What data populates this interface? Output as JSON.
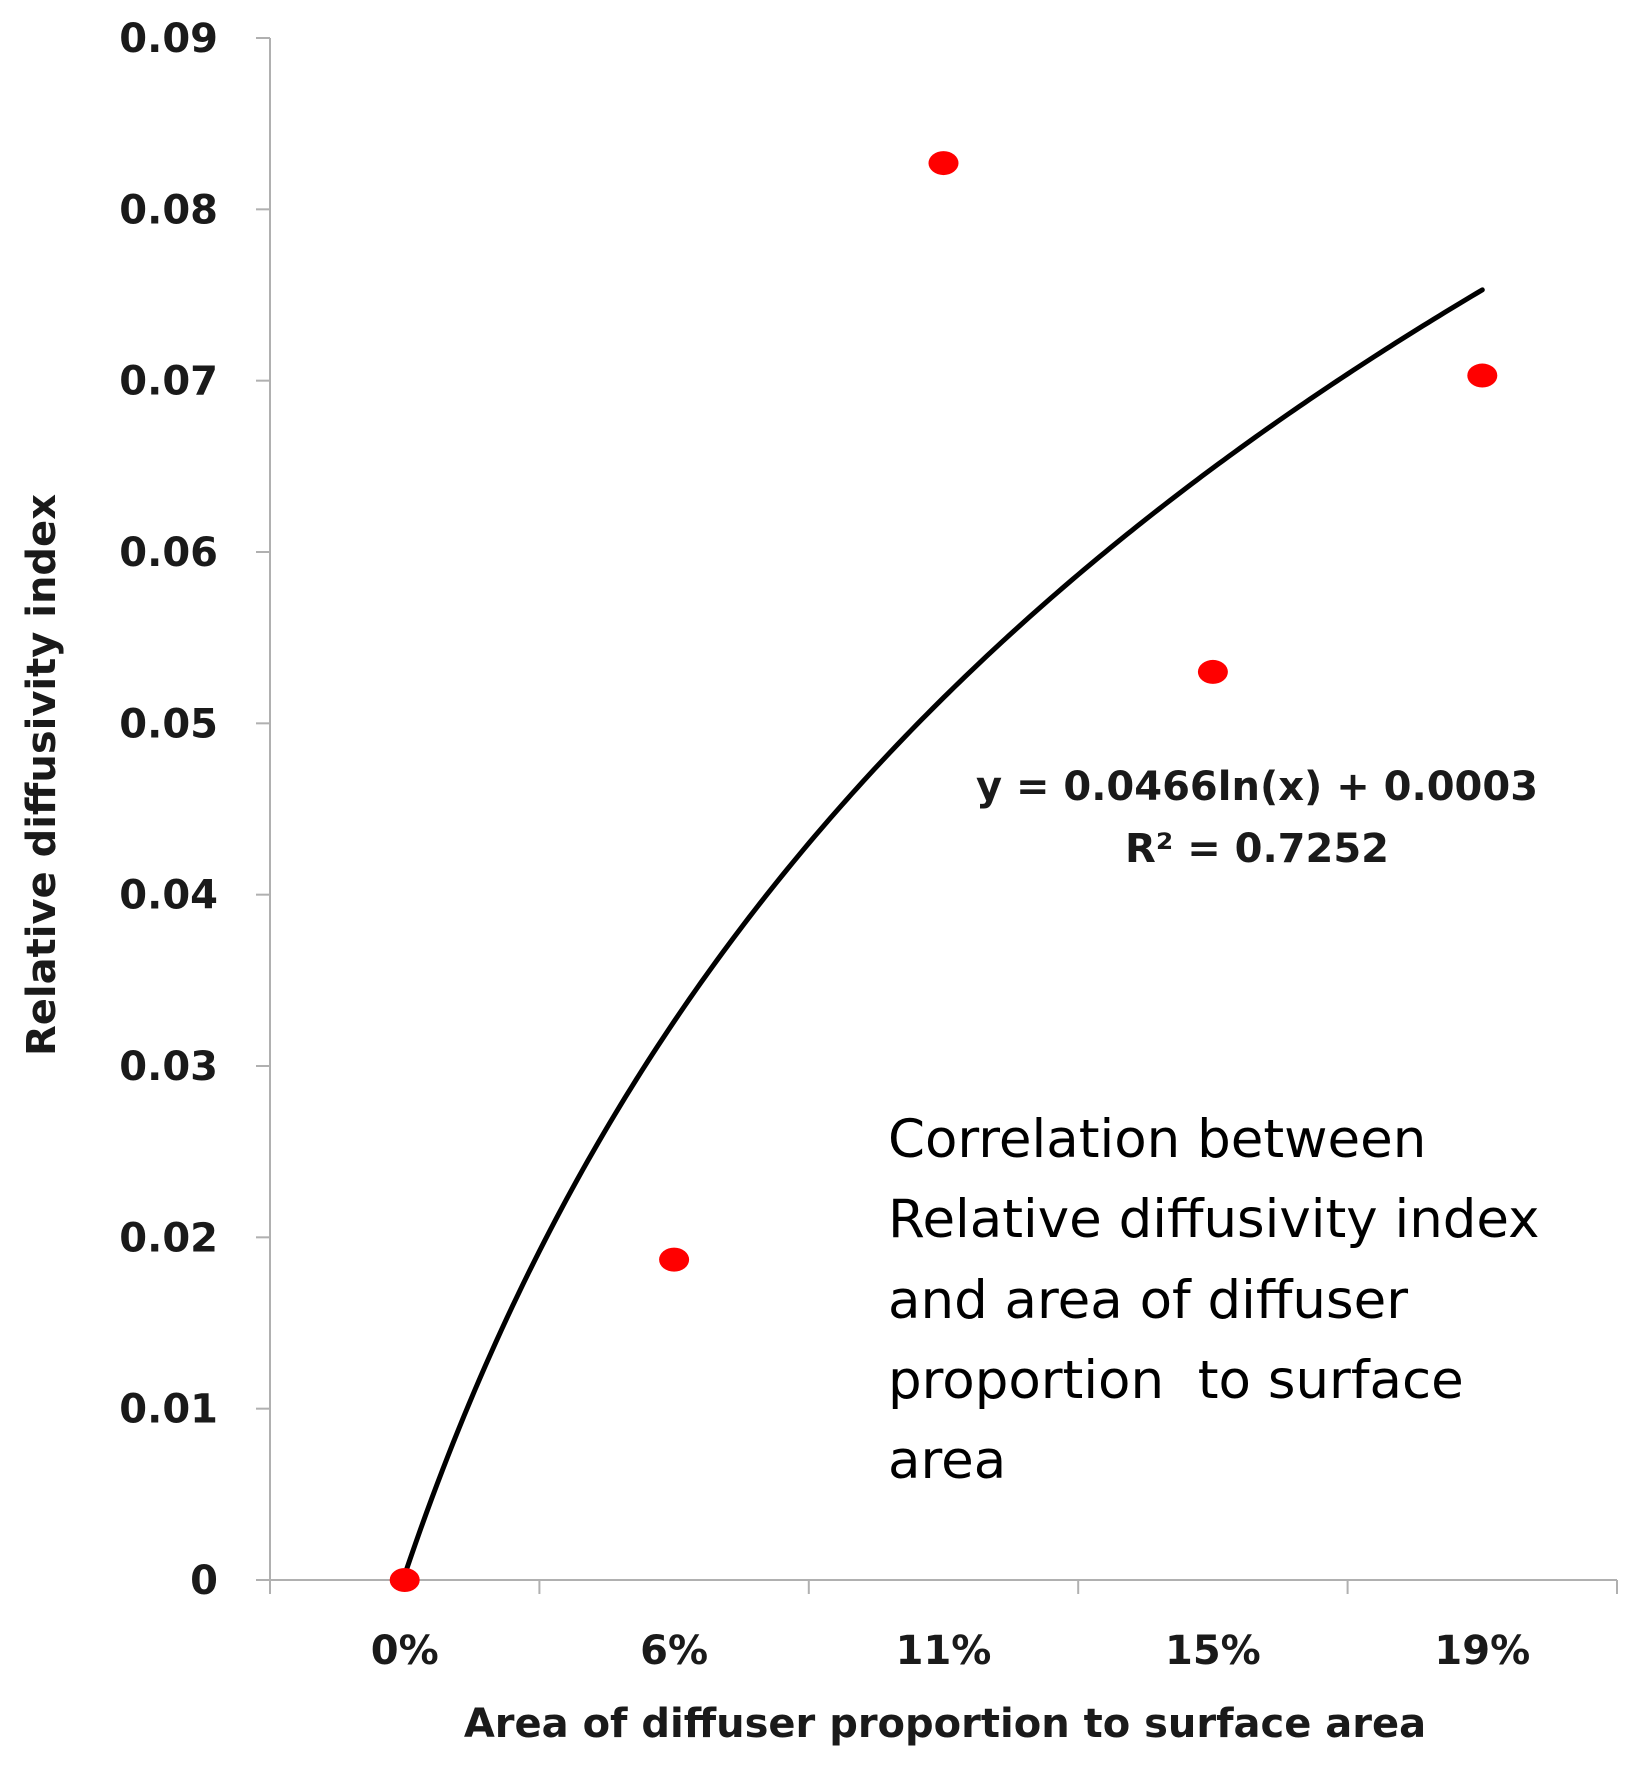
{
  "chart_data": {
    "type": "scatter",
    "title": "",
    "xlabel": "Area of diffuser proportion to surface area",
    "ylabel": "Relative diffusivity index",
    "categories": [
      "0%",
      "6%",
      "11%",
      "15%",
      "19%"
    ],
    "x": [
      1,
      2,
      3,
      4,
      5
    ],
    "values": [
      0,
      0.0187,
      0.0827,
      0.053,
      0.0703
    ],
    "ylim": [
      0,
      0.09
    ],
    "yticks": [
      0,
      0.01,
      0.02,
      0.03,
      0.04,
      0.05,
      0.06,
      0.07,
      0.08,
      0.09
    ],
    "ytick_labels": [
      "0",
      "0.01",
      "0.02",
      "0.03",
      "0.04",
      "0.05",
      "0.06",
      "0.07",
      "0.08",
      "0.09"
    ],
    "grid": false,
    "legend": "none",
    "point_color": "#ff0000",
    "trendline": {
      "type": "logarithmic",
      "a": 0.0466,
      "b": 0.0003,
      "color": "#000000",
      "equation": "y = 0.0466ln(x) + 0.0003",
      "r_squared": "R² = 0.7252"
    },
    "annotation": [
      "Correlation between",
      "Relative diffusivity index",
      "and area of diffuser",
      "proportion  to surface",
      "area"
    ]
  }
}
